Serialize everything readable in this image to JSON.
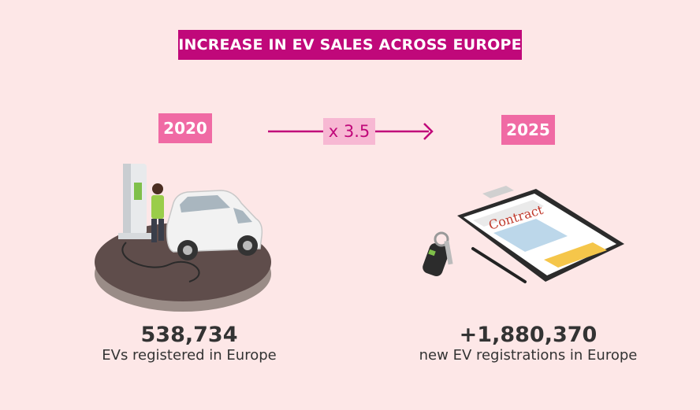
{
  "title": "INCREASE IN EV SALES ACROSS EUROPE",
  "left": {
    "year": "2020",
    "number": "538,734",
    "label": "EVs registered in Europe"
  },
  "multiplier": "x 3.5",
  "right": {
    "year": "2025",
    "number": "+1,880,370",
    "label": "new EV registrations in Europe",
    "contract_word": "Contract"
  },
  "colors": {
    "background": "#fde7e7",
    "title_bg": "#c0087a",
    "year_bg": "#f06aa4",
    "multiplier_bg": "#f7b8d3",
    "arrow": "#c0087a",
    "text": "#333333"
  },
  "icons": [
    "ev-charging-illustration-icon",
    "contract-clipboard-illustration-icon",
    "car-key-icon",
    "pen-icon"
  ]
}
